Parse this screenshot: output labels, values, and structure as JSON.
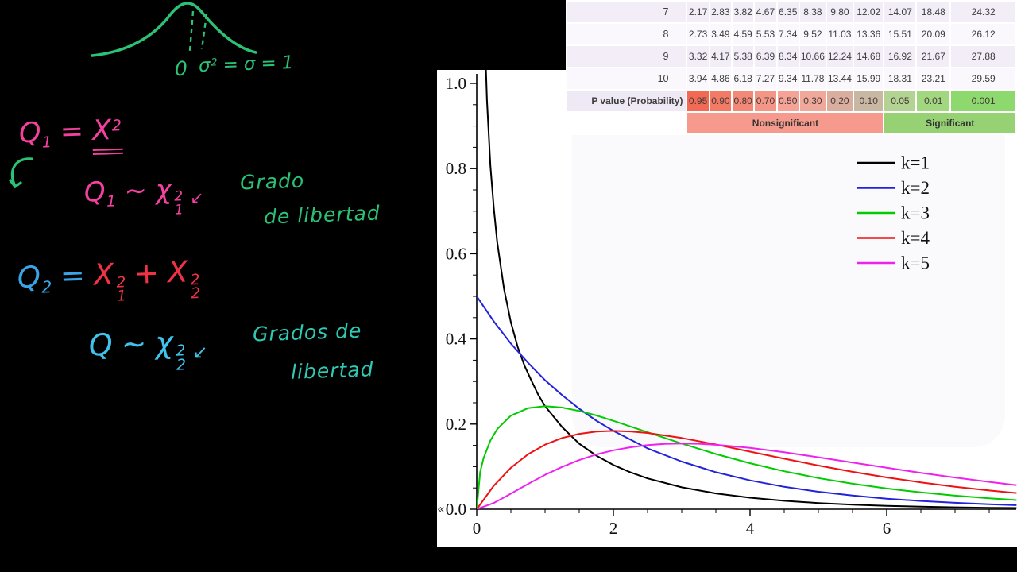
{
  "colors": {
    "handwriting_green": "#2bc275",
    "handwriting_pink": "#f4419f",
    "handwriting_red": "#ef3345",
    "handwriting_blue": "#3aa4e8",
    "handwriting_cyan": "#40c2ea",
    "handwriting_teal": "#2fc9b4",
    "background": "#000000",
    "chart_background": "#ffffff"
  },
  "artifact": {
    "glyph": "«"
  },
  "handwriting": {
    "gauss_sketch": {
      "zero": "0",
      "sigma_expr": {
        "sigma1": "σ",
        "sigma1_sup": "2",
        "eq1": "=",
        "sigma2": "σ",
        "eq2": "=",
        "value": "1"
      }
    },
    "q1_def": {
      "q": "Q",
      "q_sub": "1",
      "eq": "=",
      "x": "X",
      "x_sup": "2"
    },
    "q1_dist": {
      "q": "Q",
      "q_sub": "1",
      "sim": "~",
      "chi": "χ",
      "chi_sup": "2",
      "chi_sub": "1",
      "arrow": "↙"
    },
    "df_note_1": {
      "line1": "Grado",
      "line2": "de libertad"
    },
    "q2_def": {
      "q": "Q",
      "q_sub": "2",
      "eq": "=",
      "x1": "X",
      "x1_sup": "2",
      "x1_sub": "1",
      "plus": "+",
      "x2": "X",
      "x2_sup": "2",
      "x2_sub": "2"
    },
    "q2_dist": {
      "q": "Q",
      "sim": "~",
      "chi": "χ",
      "chi_sup": "2",
      "chi_sub": "2",
      "arrow": "↙"
    },
    "df_note_2": {
      "line1": "Grados de",
      "line2": "libertad"
    }
  },
  "table": {
    "rows": [
      {
        "label": "7",
        "values": [
          "2.17",
          "2.83",
          "3.82",
          "4.67",
          "6.35",
          "8.38",
          "9.80",
          "12.02",
          "14.07",
          "18.48",
          "24.32"
        ]
      },
      {
        "label": "8",
        "values": [
          "2.73",
          "3.49",
          "4.59",
          "5.53",
          "7.34",
          "9.52",
          "11.03",
          "13.36",
          "15.51",
          "20.09",
          "26.12"
        ]
      },
      {
        "label": "9",
        "values": [
          "3.32",
          "4.17",
          "5.38",
          "6.39",
          "8.34",
          "10.66",
          "12.24",
          "14.68",
          "16.92",
          "21.67",
          "27.88"
        ]
      },
      {
        "label": "10",
        "values": [
          "3.94",
          "4.86",
          "6.18",
          "7.27",
          "9.34",
          "11.78",
          "13.44",
          "15.99",
          "18.31",
          "23.21",
          "29.59"
        ]
      }
    ],
    "p_row": {
      "label": "P value (Probability)",
      "values": [
        "0.95",
        "0.90",
        "0.80",
        "0.70",
        "0.50",
        "0.30",
        "0.20",
        "0.10",
        "0.05",
        "0.01",
        "0.001"
      ]
    },
    "p_cell_colors": [
      "#f26a55",
      "#f37a65",
      "#f38876",
      "#f39686",
      "#f4a396",
      "#efa89a",
      "#d9ae9e",
      "#c8b7a2",
      "#b2d392",
      "#a0d77f",
      "#8ed96e"
    ],
    "row_bg_odd": "#f3edf8",
    "row_bg_even": "#faf8fc",
    "p_label_bg": "#efe8f5",
    "footer": {
      "nonsignificant": {
        "label": "Nonsignificant",
        "span": 8,
        "color": "#f59a8c"
      },
      "significant": {
        "label": "Significant",
        "span": 3,
        "color": "#96d274"
      }
    }
  },
  "chart_data": {
    "type": "line",
    "title": "",
    "xlabel": "",
    "ylabel": "",
    "xlim": [
      0,
      7.9
    ],
    "ylim": [
      0,
      1.0
    ],
    "grid": false,
    "legend_position": "top-right",
    "x_ticks": [
      [
        0,
        "0"
      ],
      [
        2,
        "2"
      ],
      [
        4,
        "4"
      ],
      [
        6,
        "6"
      ]
    ],
    "y_ticks": [
      [
        0,
        "0.0"
      ],
      [
        0.2,
        "0.2"
      ],
      [
        0.4,
        "0.4"
      ],
      [
        0.6,
        "0.6"
      ],
      [
        0.8,
        "0.8"
      ],
      [
        1.0,
        "1.0"
      ]
    ],
    "series": [
      {
        "name": "k=1",
        "color": "#000000",
        "points": [
          [
            0.02,
            2.74
          ],
          [
            0.05,
            1.74
          ],
          [
            0.08,
            1.37
          ],
          [
            0.1,
            1.2
          ],
          [
            0.15,
            0.96
          ],
          [
            0.2,
            0.807
          ],
          [
            0.25,
            0.707
          ],
          [
            0.3,
            0.627
          ],
          [
            0.4,
            0.517
          ],
          [
            0.5,
            0.439
          ],
          [
            0.6,
            0.381
          ],
          [
            0.7,
            0.337
          ],
          [
            0.8,
            0.302
          ],
          [
            0.9,
            0.269
          ],
          [
            1,
            0.242
          ],
          [
            1.25,
            0.193
          ],
          [
            1.5,
            0.154
          ],
          [
            1.75,
            0.126
          ],
          [
            2,
            0.104
          ],
          [
            2.25,
            0.0865
          ],
          [
            2.5,
            0.0723
          ],
          [
            3,
            0.0514
          ],
          [
            3.5,
            0.0371
          ],
          [
            4,
            0.027
          ],
          [
            4.5,
            0.0198
          ],
          [
            5,
            0.0146
          ],
          [
            5.5,
            0.0109
          ],
          [
            6,
            0.0081
          ],
          [
            6.5,
            0.0061
          ],
          [
            7,
            0.0045
          ],
          [
            7.5,
            0.0034
          ],
          [
            7.9,
            0.0028
          ]
        ]
      },
      {
        "name": "k=2",
        "color": "#2222dd",
        "points": [
          [
            0,
            0.5
          ],
          [
            0.25,
            0.441
          ],
          [
            0.5,
            0.389
          ],
          [
            0.75,
            0.344
          ],
          [
            1,
            0.303
          ],
          [
            1.25,
            0.268
          ],
          [
            1.5,
            0.236
          ],
          [
            1.75,
            0.208
          ],
          [
            2,
            0.184
          ],
          [
            2.5,
            0.143
          ],
          [
            3,
            0.112
          ],
          [
            3.5,
            0.0869
          ],
          [
            4,
            0.0677
          ],
          [
            4.5,
            0.0527
          ],
          [
            5,
            0.041
          ],
          [
            5.5,
            0.032
          ],
          [
            6,
            0.0249
          ],
          [
            6.5,
            0.0194
          ],
          [
            7,
            0.0151
          ],
          [
            7.5,
            0.0118
          ],
          [
            7.9,
            0.0096
          ]
        ]
      },
      {
        "name": "k=3",
        "color": "#00cc00",
        "points": [
          [
            0,
            0
          ],
          [
            0.05,
            0.087
          ],
          [
            0.1,
            0.12
          ],
          [
            0.2,
            0.1614
          ],
          [
            0.3,
            0.1882
          ],
          [
            0.5,
            0.2197
          ],
          [
            0.75,
            0.2374
          ],
          [
            1,
            0.242
          ],
          [
            1.25,
            0.2388
          ],
          [
            1.5,
            0.2308
          ],
          [
            1.75,
            0.2203
          ],
          [
            2,
            0.2076
          ],
          [
            2.5,
            0.1807
          ],
          [
            3,
            0.1542
          ],
          [
            3.5,
            0.1297
          ],
          [
            4,
            0.108
          ],
          [
            4.5,
            0.0892
          ],
          [
            5,
            0.0732
          ],
          [
            5.5,
            0.0598
          ],
          [
            6,
            0.0487
          ],
          [
            6.5,
            0.0395
          ],
          [
            7,
            0.0319
          ],
          [
            7.5,
            0.0257
          ],
          [
            7.9,
            0.0215
          ]
        ]
      },
      {
        "name": "k=4",
        "color": "#ee1111",
        "points": [
          [
            0,
            0
          ],
          [
            0.25,
            0.0552
          ],
          [
            0.5,
            0.0974
          ],
          [
            0.75,
            0.1289
          ],
          [
            1,
            0.1516
          ],
          [
            1.25,
            0.1674
          ],
          [
            1.5,
            0.1771
          ],
          [
            1.75,
            0.1824
          ],
          [
            2,
            0.1839
          ],
          [
            2.25,
            0.1827
          ],
          [
            2.5,
            0.1791
          ],
          [
            3,
            0.1673
          ],
          [
            3.5,
            0.1521
          ],
          [
            4,
            0.1353
          ],
          [
            4.5,
            0.1186
          ],
          [
            5,
            0.1026
          ],
          [
            5.5,
            0.0879
          ],
          [
            6,
            0.0747
          ],
          [
            6.5,
            0.063
          ],
          [
            7,
            0.0528
          ],
          [
            7.5,
            0.0441
          ],
          [
            7.9,
            0.038
          ]
        ]
      },
      {
        "name": "k=5",
        "color": "#ee22ee",
        "points": [
          [
            0,
            0
          ],
          [
            0.25,
            0.0147
          ],
          [
            0.5,
            0.0366
          ],
          [
            0.75,
            0.0594
          ],
          [
            1,
            0.0807
          ],
          [
            1.25,
            0.0995
          ],
          [
            1.5,
            0.1154
          ],
          [
            1.75,
            0.1285
          ],
          [
            2,
            0.1384
          ],
          [
            2.25,
            0.1456
          ],
          [
            2.5,
            0.1506
          ],
          [
            2.75,
            0.1534
          ],
          [
            3,
            0.1542
          ],
          [
            3.25,
            0.1538
          ],
          [
            3.5,
            0.1513
          ],
          [
            4,
            0.144
          ],
          [
            4.5,
            0.1338
          ],
          [
            5,
            0.122
          ],
          [
            5.5,
            0.1097
          ],
          [
            6,
            0.0973
          ],
          [
            6.5,
            0.0855
          ],
          [
            7,
            0.0744
          ],
          [
            7.5,
            0.0642
          ],
          [
            7.9,
            0.0566
          ]
        ]
      }
    ]
  }
}
